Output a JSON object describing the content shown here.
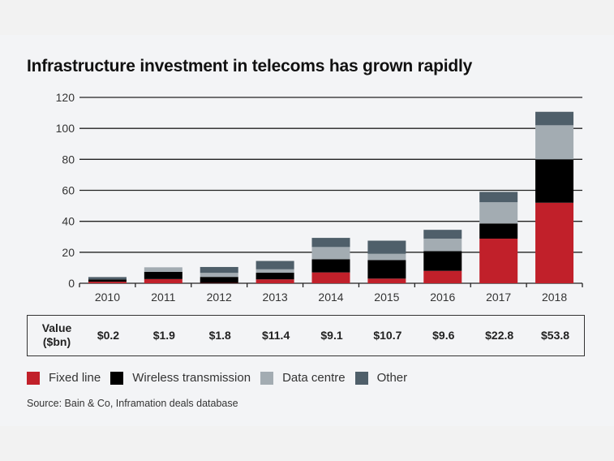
{
  "title": "Infrastructure investment in telecoms has grown rapidly",
  "chart_data": {
    "type": "bar",
    "stacked": true,
    "title": "Infrastructure investment in telecoms has grown rapidly",
    "xlabel": "",
    "ylabel": "",
    "ylim": [
      0,
      120
    ],
    "yticks": [
      "0",
      "20",
      "40",
      "60",
      "80",
      "100",
      "120"
    ],
    "grid": true,
    "legend_position": "bottom",
    "categories": [
      "2010",
      "2011",
      "2012",
      "2013",
      "2014",
      "2015",
      "2016",
      "2017",
      "2018"
    ],
    "series": [
      {
        "name": "Fixed line",
        "color": "#c1202a",
        "values": [
          1,
          2.7,
          0.2,
          2.5,
          7,
          3,
          8,
          28.8,
          52
        ]
      },
      {
        "name": "Wireless transmission",
        "color": "#000000",
        "values": [
          1.5,
          4.7,
          3.9,
          4.3,
          8.5,
          12,
          12.7,
          9.8,
          28
        ]
      },
      {
        "name": "Data centre",
        "color": "#a3acb2",
        "values": [
          0,
          2.9,
          2.6,
          2.2,
          7.9,
          4,
          8.1,
          13.7,
          22
        ]
      },
      {
        "name": "Other",
        "color": "#4f5f6a",
        "values": [
          1.5,
          0,
          3.8,
          5.4,
          5.9,
          8.5,
          5.7,
          6.7,
          8.7
        ]
      }
    ]
  },
  "value_table": {
    "header": [
      "Value",
      "($bn)"
    ],
    "values": [
      "$0.2",
      "$1.9",
      "$1.8",
      "$11.4",
      "$9.1",
      "$10.7",
      "$9.6",
      "$22.8",
      "$53.8"
    ]
  },
  "source": "Source: Bain & Co, Inframation deals database"
}
